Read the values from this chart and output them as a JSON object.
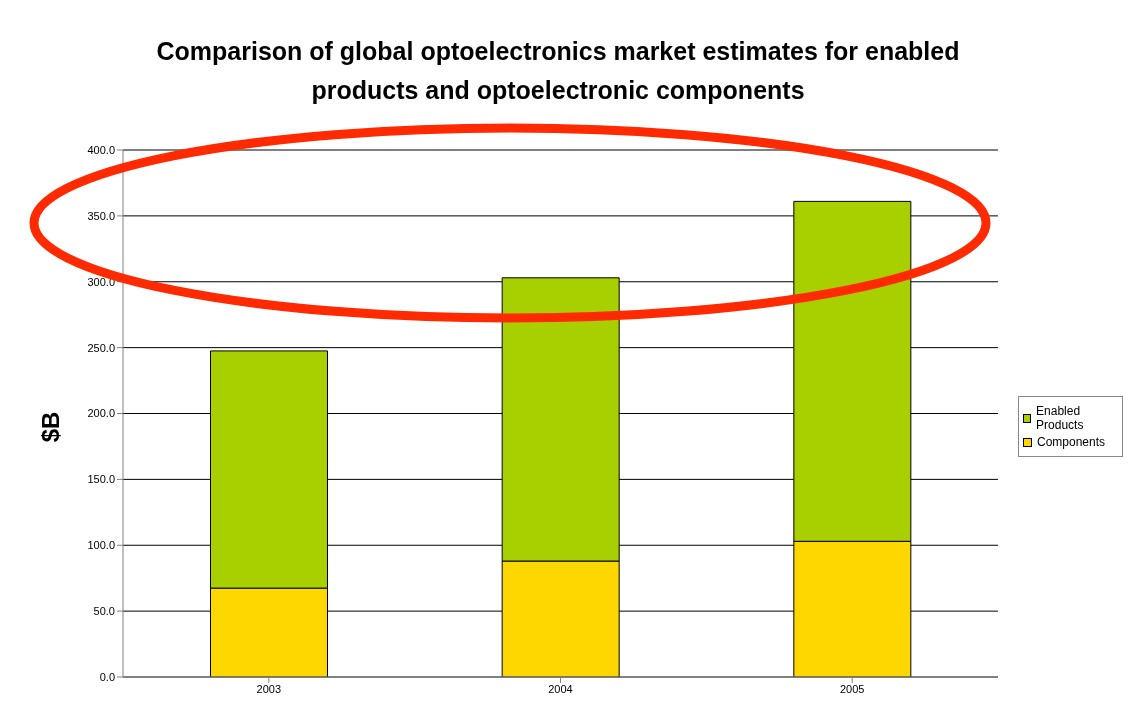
{
  "chart_data": {
    "type": "bar",
    "title": "Comparison of global optoelectronics market estimates for enabled products and optoelectronic components",
    "ylabel": "$B",
    "categories": [
      "2003",
      "2004",
      "2005"
    ],
    "stacked": true,
    "series": [
      {
        "name": "Components",
        "color": "#ffd700",
        "values": [
          67.5,
          88,
          103
        ]
      },
      {
        "name": "Enabled Products",
        "color": "#a8d000",
        "values": [
          180,
          215,
          258
        ]
      }
    ],
    "ylim": [
      0,
      400
    ],
    "yticks": [
      {
        "value": 0,
        "label": "0.0"
      },
      {
        "value": 50,
        "label": "50.0"
      },
      {
        "value": 100,
        "label": "100.0"
      },
      {
        "value": 150,
        "label": "150.0"
      },
      {
        "value": 200,
        "label": "200.0"
      },
      {
        "value": 250,
        "label": "250.0"
      },
      {
        "value": 300,
        "label": "300.0"
      },
      {
        "value": 350,
        "label": "350.0"
      },
      {
        "value": 400,
        "label": "400.0"
      }
    ],
    "grid": "y",
    "legend": "right"
  }
}
